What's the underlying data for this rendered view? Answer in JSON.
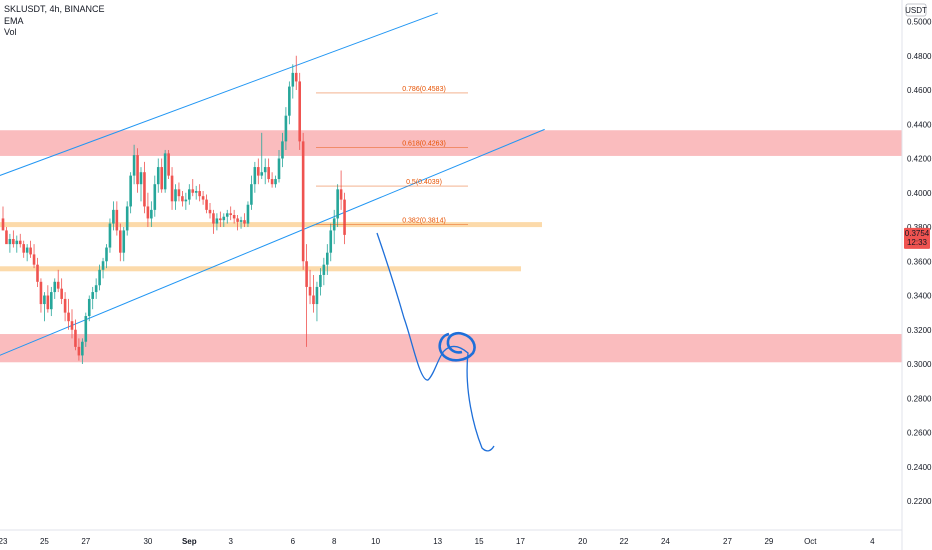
{
  "header": {
    "symbol_line": "SKLUSDT, 4h, BINANCE",
    "indicators": [
      "EMA",
      "Vol"
    ]
  },
  "price_axis": {
    "currency": "USDT",
    "current_price": "0.3754",
    "countdown": "12:33"
  },
  "colors": {
    "up": "#26a69a",
    "down": "#ef5350",
    "zone": "#f8a5a8",
    "level": "#fcd39b",
    "trendline": "#2196f3",
    "drawing": "#1e6fd9",
    "fib": "#e65100",
    "price_tag": "#ef5350"
  },
  "chart_data": {
    "type": "candlestick",
    "symbol": "SKLUSDT",
    "interval": "4h",
    "exchange": "BINANCE",
    "ylim": [
      0.19,
      0.505
    ],
    "y_ticks": [
      "0.5000",
      "0.4800",
      "0.4600",
      "0.4400",
      "0.4200",
      "0.4000",
      "0.3800",
      "0.3600",
      "0.3400",
      "0.3200",
      "0.3000",
      "0.2800",
      "0.2600",
      "0.2400",
      "0.2200"
    ],
    "x_ticks": [
      {
        "label": "23",
        "bar": 0
      },
      {
        "label": "25",
        "bar": 12
      },
      {
        "label": "27",
        "bar": 24
      },
      {
        "label": "30",
        "bar": 42
      },
      {
        "label": "Sep",
        "bar": 54
      },
      {
        "label": "3",
        "bar": 66
      },
      {
        "label": "6",
        "bar": 84
      },
      {
        "label": "8",
        "bar": 96
      },
      {
        "label": "10",
        "bar": 108
      },
      {
        "label": "13",
        "bar": 126
      },
      {
        "label": "15",
        "bar": 138
      },
      {
        "label": "17",
        "bar": 150
      },
      {
        "label": "20",
        "bar": 168
      },
      {
        "label": "22",
        "bar": 180
      },
      {
        "label": "24",
        "bar": 192
      },
      {
        "label": "27",
        "bar": 210
      },
      {
        "label": "29",
        "bar": 222
      },
      {
        "label": "Oct",
        "bar": 234
      },
      {
        "label": "4",
        "bar": 252
      }
    ],
    "candles": [
      [
        0.385,
        0.392,
        0.38,
        0.378
      ],
      [
        0.378,
        0.38,
        0.372,
        0.37
      ],
      [
        0.37,
        0.376,
        0.365,
        0.373
      ],
      [
        0.373,
        0.378,
        0.368,
        0.37
      ],
      [
        0.37,
        0.375,
        0.365,
        0.372
      ],
      [
        0.372,
        0.376,
        0.368,
        0.37
      ],
      [
        0.37,
        0.372,
        0.362,
        0.365
      ],
      [
        0.365,
        0.37,
        0.36,
        0.368
      ],
      [
        0.368,
        0.372,
        0.362,
        0.364
      ],
      [
        0.364,
        0.37,
        0.356,
        0.358
      ],
      [
        0.358,
        0.362,
        0.345,
        0.348
      ],
      [
        0.348,
        0.35,
        0.33,
        0.335
      ],
      [
        0.335,
        0.342,
        0.325,
        0.34
      ],
      [
        0.34,
        0.346,
        0.33,
        0.332
      ],
      [
        0.332,
        0.345,
        0.328,
        0.342
      ],
      [
        0.342,
        0.35,
        0.338,
        0.348
      ],
      [
        0.348,
        0.355,
        0.342,
        0.344
      ],
      [
        0.344,
        0.35,
        0.335,
        0.338
      ],
      [
        0.338,
        0.342,
        0.325,
        0.33
      ],
      [
        0.33,
        0.338,
        0.32,
        0.325
      ],
      [
        0.325,
        0.332,
        0.315,
        0.32
      ],
      [
        0.32,
        0.326,
        0.308,
        0.31
      ],
      [
        0.31,
        0.315,
        0.302,
        0.305
      ],
      [
        0.305,
        0.315,
        0.3,
        0.313
      ],
      [
        0.313,
        0.33,
        0.31,
        0.328
      ],
      [
        0.328,
        0.34,
        0.325,
        0.338
      ],
      [
        0.338,
        0.345,
        0.332,
        0.342
      ],
      [
        0.342,
        0.35,
        0.338,
        0.346
      ],
      [
        0.346,
        0.358,
        0.343,
        0.355
      ],
      [
        0.355,
        0.362,
        0.35,
        0.36
      ],
      [
        0.36,
        0.37,
        0.356,
        0.368
      ],
      [
        0.368,
        0.385,
        0.365,
        0.382
      ],
      [
        0.382,
        0.395,
        0.378,
        0.39
      ],
      [
        0.39,
        0.395,
        0.375,
        0.378
      ],
      [
        0.378,
        0.382,
        0.36,
        0.365
      ],
      [
        0.365,
        0.38,
        0.36,
        0.378
      ],
      [
        0.378,
        0.395,
        0.375,
        0.392
      ],
      [
        0.392,
        0.412,
        0.388,
        0.41
      ],
      [
        0.41,
        0.428,
        0.405,
        0.422
      ],
      [
        0.422,
        0.426,
        0.4,
        0.405
      ],
      [
        0.405,
        0.415,
        0.395,
        0.412
      ],
      [
        0.412,
        0.418,
        0.388,
        0.392
      ],
      [
        0.392,
        0.4,
        0.38,
        0.385
      ],
      [
        0.385,
        0.395,
        0.38,
        0.39
      ],
      [
        0.39,
        0.41,
        0.386,
        0.405
      ],
      [
        0.405,
        0.42,
        0.4,
        0.415
      ],
      [
        0.415,
        0.42,
        0.4,
        0.402
      ],
      [
        0.402,
        0.425,
        0.4,
        0.423
      ],
      [
        0.423,
        0.425,
        0.408,
        0.41
      ],
      [
        0.41,
        0.415,
        0.39,
        0.395
      ],
      [
        0.395,
        0.405,
        0.39,
        0.402
      ],
      [
        0.402,
        0.406,
        0.395,
        0.398
      ],
      [
        0.398,
        0.401,
        0.392,
        0.395
      ],
      [
        0.395,
        0.4,
        0.39,
        0.396
      ],
      [
        0.396,
        0.405,
        0.393,
        0.402
      ],
      [
        0.402,
        0.408,
        0.398,
        0.4
      ],
      [
        0.4,
        0.404,
        0.396,
        0.401
      ],
      [
        0.401,
        0.405,
        0.395,
        0.398
      ],
      [
        0.398,
        0.401,
        0.393,
        0.396
      ],
      [
        0.396,
        0.399,
        0.388,
        0.39
      ],
      [
        0.39,
        0.394,
        0.385,
        0.388
      ],
      [
        0.388,
        0.39,
        0.376,
        0.382
      ],
      [
        0.382,
        0.388,
        0.378,
        0.385
      ],
      [
        0.385,
        0.389,
        0.38,
        0.384
      ],
      [
        0.384,
        0.388,
        0.38,
        0.386
      ],
      [
        0.386,
        0.39,
        0.382,
        0.388
      ],
      [
        0.388,
        0.392,
        0.384,
        0.387
      ],
      [
        0.387,
        0.39,
        0.382,
        0.385
      ],
      [
        0.385,
        0.387,
        0.378,
        0.383
      ],
      [
        0.383,
        0.386,
        0.379,
        0.384
      ],
      [
        0.384,
        0.388,
        0.38,
        0.382
      ],
      [
        0.382,
        0.395,
        0.38,
        0.393
      ],
      [
        0.393,
        0.41,
        0.39,
        0.405
      ],
      [
        0.405,
        0.418,
        0.4,
        0.415
      ],
      [
        0.415,
        0.42,
        0.405,
        0.41
      ],
      [
        0.41,
        0.435,
        0.408,
        0.412
      ],
      [
        0.412,
        0.42,
        0.405,
        0.415
      ],
      [
        0.415,
        0.42,
        0.406,
        0.408
      ],
      [
        0.408,
        0.412,
        0.403,
        0.405
      ],
      [
        0.405,
        0.41,
        0.403,
        0.408
      ],
      [
        0.408,
        0.425,
        0.406,
        0.42
      ],
      [
        0.42,
        0.435,
        0.415,
        0.43
      ],
      [
        0.43,
        0.45,
        0.425,
        0.445
      ],
      [
        0.445,
        0.465,
        0.44,
        0.462
      ],
      [
        0.462,
        0.475,
        0.455,
        0.47
      ],
      [
        0.47,
        0.48,
        0.46,
        0.465
      ],
      [
        0.465,
        0.47,
        0.425,
        0.43
      ],
      [
        0.43,
        0.435,
        0.355,
        0.36
      ],
      [
        0.36,
        0.37,
        0.31,
        0.345
      ],
      [
        0.345,
        0.355,
        0.335,
        0.34
      ],
      [
        0.34,
        0.352,
        0.33,
        0.335
      ],
      [
        0.335,
        0.348,
        0.325,
        0.345
      ],
      [
        0.345,
        0.356,
        0.34,
        0.352
      ],
      [
        0.352,
        0.362,
        0.346,
        0.358
      ],
      [
        0.358,
        0.37,
        0.352,
        0.365
      ],
      [
        0.365,
        0.382,
        0.36,
        0.378
      ],
      [
        0.378,
        0.39,
        0.37,
        0.385
      ],
      [
        0.385,
        0.405,
        0.38,
        0.402
      ],
      [
        0.402,
        0.413,
        0.39,
        0.396
      ],
      [
        0.396,
        0.4,
        0.37,
        0.3754
      ]
    ],
    "zones": [
      {
        "from": 0.4215,
        "to": 0.4365
      },
      {
        "from": 0.301,
        "to": 0.3175
      }
    ],
    "levels": [
      0.3814,
      0.3556
    ],
    "trendlines": [
      {
        "p1": {
          "bar": -1,
          "price": 0.41
        },
        "p2": {
          "bar": 126,
          "price": 0.505
        }
      },
      {
        "p1": {
          "bar": -1,
          "price": 0.305
        },
        "p2": {
          "bar": 157,
          "price": 0.437
        }
      }
    ],
    "fib_levels": [
      {
        "ratio": "0.786",
        "value": "0.4583",
        "price": 0.4583
      },
      {
        "ratio": "0.618",
        "value": "0.4263",
        "price": 0.4263
      },
      {
        "ratio": "0.5",
        "value": "0.4039",
        "price": 0.4039
      },
      {
        "ratio": "0.382",
        "value": "0.3814",
        "price": 0.3814
      }
    ]
  }
}
